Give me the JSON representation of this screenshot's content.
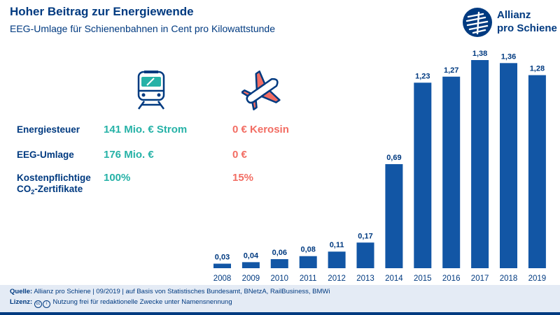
{
  "brand": {
    "line1": "Allianz",
    "line2": "pro Schiene"
  },
  "comparison": {
    "rows": [
      {
        "label": "Energiesteuer",
        "rail": "141 Mio. € Strom",
        "air": "0 € Kerosin"
      },
      {
        "label": "EEG-Umlage",
        "rail": "176 Mio. €",
        "air": "0 €"
      },
      {
        "label": "Kostenpflichtige",
        "label2_prefix": "CO",
        "label2_sub": "2",
        "label2_suffix": "-Zertifikate",
        "rail": "100%",
        "air": "15%"
      }
    ]
  },
  "chart_data": {
    "type": "bar",
    "title": "Hoher Beitrag zur Energiewende",
    "subtitle": "EEG-Umlage für Schienenbahnen in Cent pro Kilowattstunde",
    "categories": [
      "2008",
      "2009",
      "2010",
      "2011",
      "2012",
      "2013",
      "2014",
      "2015",
      "2016",
      "2017",
      "2018",
      "2019"
    ],
    "values": [
      0.03,
      0.04,
      0.06,
      0.08,
      0.11,
      0.17,
      0.69,
      1.23,
      1.27,
      1.38,
      1.36,
      1.28
    ],
    "labels": [
      "0,03",
      "0,04",
      "0,06",
      "0,08",
      "0,11",
      "0,17",
      "0,69",
      "1,23",
      "1,27",
      "1,38",
      "1,36",
      "1,28"
    ],
    "ylim": [
      0,
      1.38
    ],
    "grid": false,
    "bar_color": "#1256a5"
  },
  "footer": {
    "source_label": "Quelle:",
    "source_text": "Allianz pro Schiene | 09/2019 | auf Basis von Statistisches Bundesamt, BNetzA, RailBusiness, BMWi",
    "license_label": "Lizenz:",
    "license_text": "Nutzung frei für redaktionelle Zwecke unter Namensnennung"
  }
}
